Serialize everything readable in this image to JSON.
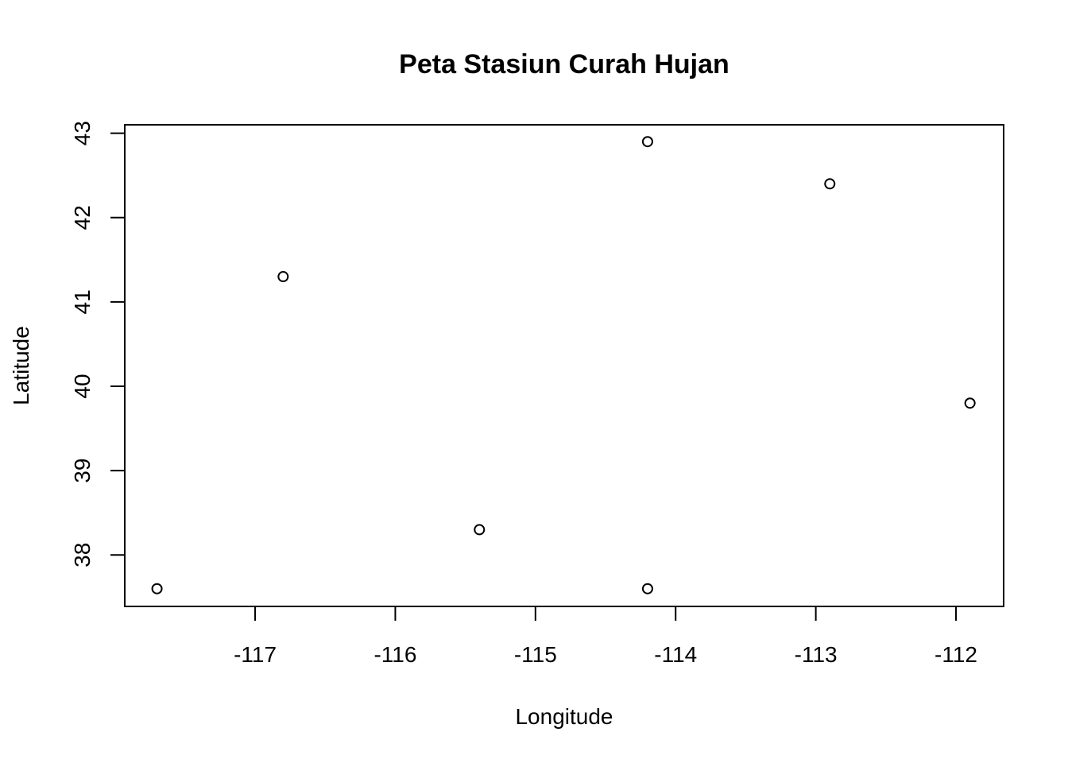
{
  "chart_data": {
    "type": "scatter",
    "title": "Peta Stasiun Curah Hujan",
    "xlabel": "Longitude",
    "ylabel": "Latitude",
    "xlim": [
      -117.93,
      -111.66
    ],
    "ylim": [
      37.39,
      43.1
    ],
    "xticks": [
      -117,
      -116,
      -115,
      -114,
      -113,
      -112
    ],
    "yticks": [
      38,
      39,
      40,
      41,
      42,
      43
    ],
    "grid": false,
    "marker": "open-circle",
    "points": [
      {
        "x": -117.7,
        "y": 37.6
      },
      {
        "x": -116.8,
        "y": 41.3
      },
      {
        "x": -115.4,
        "y": 38.3
      },
      {
        "x": -114.2,
        "y": 42.9
      },
      {
        "x": -114.2,
        "y": 37.6
      },
      {
        "x": -112.9,
        "y": 42.4
      },
      {
        "x": -111.9,
        "y": 39.8
      }
    ]
  }
}
